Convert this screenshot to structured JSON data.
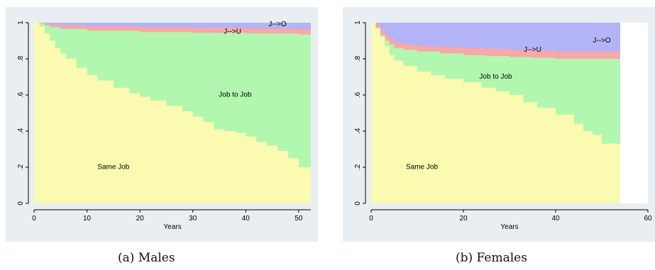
{
  "captions": {
    "a": "(a)  Males",
    "b": "(b)  Females"
  },
  "colors": {
    "J-->O": "#b3b3f7",
    "J-->U": "#f7a8a8",
    "Job to Job": "#b2f7b0",
    "Same Job": "#fafab0"
  },
  "chart_data": [
    {
      "type": "area",
      "title": "",
      "xlabel": "Years",
      "ylabel": "",
      "xlim": [
        0,
        52.3
      ],
      "ylim": [
        0,
        1
      ],
      "x_ticks": [
        "0",
        "10",
        "20",
        "30",
        "40",
        "50"
      ],
      "y_ticks": [
        "0",
        ".2",
        ".4",
        ".6",
        ".8",
        "1"
      ],
      "x_end": 52.3,
      "stacked_cumulative": true,
      "series": [
        {
          "name": "Same Job",
          "x": [
            0,
            1,
            2,
            3,
            4,
            5,
            6,
            8,
            10,
            12,
            15,
            18,
            20,
            22,
            25,
            28,
            30,
            32,
            34,
            36,
            38,
            40,
            42,
            44,
            46,
            48,
            50,
            52
          ],
          "values": [
            1.0,
            0.98,
            0.94,
            0.9,
            0.86,
            0.83,
            0.8,
            0.75,
            0.71,
            0.68,
            0.64,
            0.61,
            0.59,
            0.57,
            0.54,
            0.51,
            0.48,
            0.45,
            0.41,
            0.4,
            0.39,
            0.37,
            0.34,
            0.32,
            0.29,
            0.25,
            0.2,
            0.2
          ]
        },
        {
          "name": "Job to Job",
          "x": [
            0,
            1,
            2,
            3,
            5,
            10,
            20,
            30,
            40,
            50,
            52
          ],
          "values": [
            1.0,
            0.995,
            0.985,
            0.975,
            0.965,
            0.955,
            0.948,
            0.944,
            0.94,
            0.935,
            0.935
          ]
        },
        {
          "name": "J-->U",
          "x": [
            0,
            1,
            2,
            3,
            5,
            10,
            20,
            30,
            40,
            50,
            52
          ],
          "values": [
            1.0,
            1.0,
            0.995,
            0.99,
            0.985,
            0.98,
            0.975,
            0.972,
            0.968,
            0.962,
            0.962
          ]
        },
        {
          "name": "J-->O",
          "x": [
            0,
            52
          ],
          "values": [
            1.0,
            1.0
          ]
        }
      ],
      "annotations": [
        "J-->O",
        "J-->U",
        "Job to Job",
        "Same Job"
      ]
    },
    {
      "type": "area",
      "title": "",
      "xlabel": "Years",
      "ylabel": "",
      "xlim": [
        0,
        60
      ],
      "ylim": [
        0,
        1
      ],
      "x_ticks": [
        "0",
        "20",
        "40",
        "60"
      ],
      "y_ticks": [
        "0",
        ".2",
        ".4",
        ".6",
        ".8",
        "1"
      ],
      "x_end": 54,
      "stacked_cumulative": true,
      "series": [
        {
          "name": "Same Job",
          "x": [
            0,
            1,
            2,
            3,
            4,
            5,
            7,
            10,
            13,
            16,
            20,
            24,
            27,
            30,
            33,
            36,
            40,
            44,
            46,
            48,
            50,
            52,
            54
          ],
          "values": [
            1.0,
            0.97,
            0.92,
            0.87,
            0.82,
            0.79,
            0.76,
            0.73,
            0.71,
            0.69,
            0.67,
            0.64,
            0.62,
            0.6,
            0.56,
            0.53,
            0.49,
            0.44,
            0.4,
            0.38,
            0.33,
            0.33,
            0.33
          ]
        },
        {
          "name": "Job to Job",
          "x": [
            0,
            1,
            2,
            3,
            4,
            5,
            7,
            10,
            15,
            20,
            25,
            30,
            35,
            40,
            45,
            50,
            54
          ],
          "values": [
            1.0,
            0.97,
            0.93,
            0.9,
            0.88,
            0.86,
            0.85,
            0.84,
            0.83,
            0.82,
            0.815,
            0.81,
            0.805,
            0.8,
            0.8,
            0.8,
            0.8
          ]
        },
        {
          "name": "J-->U",
          "x": [
            0,
            1,
            2,
            3,
            4,
            5,
            7,
            10,
            15,
            20,
            25,
            30,
            35,
            40,
            45,
            50,
            54
          ],
          "values": [
            1.0,
            0.99,
            0.96,
            0.93,
            0.91,
            0.89,
            0.88,
            0.87,
            0.865,
            0.86,
            0.855,
            0.85,
            0.845,
            0.84,
            0.84,
            0.84,
            0.84
          ]
        },
        {
          "name": "J-->O",
          "x": [
            0,
            54
          ],
          "values": [
            1.0,
            1.0
          ]
        }
      ],
      "annotations": [
        "J-->O",
        "J-->U",
        "Job to Job",
        "Same Job"
      ]
    }
  ]
}
